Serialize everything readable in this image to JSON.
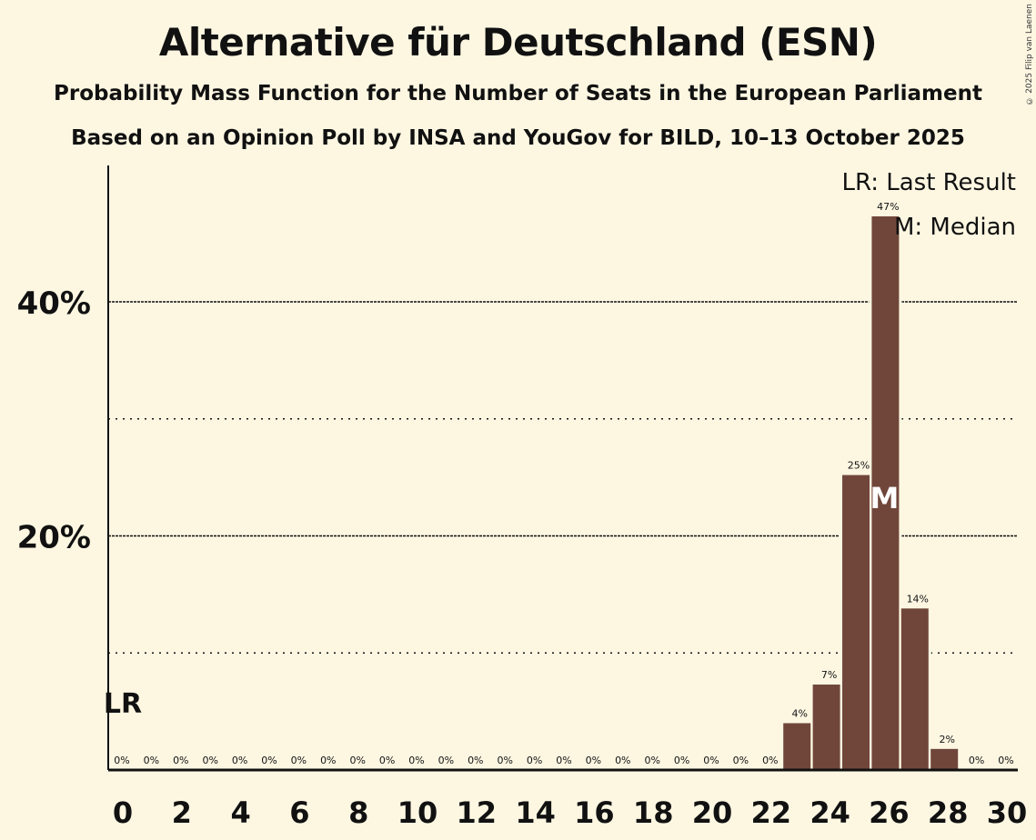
{
  "title": "Alternative für Deutschland (ESN)",
  "subtitle": "Probability Mass Function for the Number of Seats in the European Parliament",
  "subtitle2": "Based on an Opinion Poll by INSA and YouGov for BILD, 10–13 October 2025",
  "copyright": "© 2025 Filip van Laenen",
  "colors": {
    "bar": "#70463b",
    "background": "#fdf7e2"
  },
  "chart_data": {
    "type": "bar",
    "x": [
      0,
      1,
      2,
      3,
      4,
      5,
      6,
      7,
      8,
      9,
      10,
      11,
      12,
      13,
      14,
      15,
      16,
      17,
      18,
      19,
      20,
      21,
      22,
      23,
      24,
      25,
      26,
      27,
      28,
      29,
      30
    ],
    "values": [
      0,
      0,
      0,
      0,
      0,
      0,
      0,
      0,
      0,
      0,
      0,
      0,
      0,
      0,
      0,
      0,
      0,
      0,
      0,
      0,
      0,
      0,
      0,
      4.0,
      7.3,
      25.2,
      47.3,
      13.8,
      1.8,
      0,
      0
    ],
    "labels": [
      "0%",
      "0%",
      "0%",
      "0%",
      "0%",
      "0%",
      "0%",
      "0%",
      "0%",
      "0%",
      "0%",
      "0%",
      "0%",
      "0%",
      "0%",
      "0%",
      "0%",
      "0%",
      "0%",
      "0%",
      "0%",
      "0%",
      "0%",
      "4%",
      "7%",
      "25%",
      "47%",
      "14%",
      "2%",
      "0%",
      "0%"
    ],
    "xticks": [
      "0",
      "2",
      "4",
      "6",
      "8",
      "10",
      "12",
      "14",
      "16",
      "18",
      "20",
      "22",
      "24",
      "26",
      "28",
      "30"
    ],
    "yticks": [
      {
        "value": 20,
        "label": "20%"
      },
      {
        "value": 40,
        "label": "40%"
      }
    ],
    "yminor": [
      10,
      30
    ],
    "ylim": [
      0,
      51
    ],
    "last_result": {
      "seat": 0,
      "label": "LR"
    },
    "median": {
      "seat": 26,
      "label": "M"
    },
    "legend": [
      "LR: Last Result",
      "M: Median"
    ],
    "legend_position": "top-right"
  }
}
